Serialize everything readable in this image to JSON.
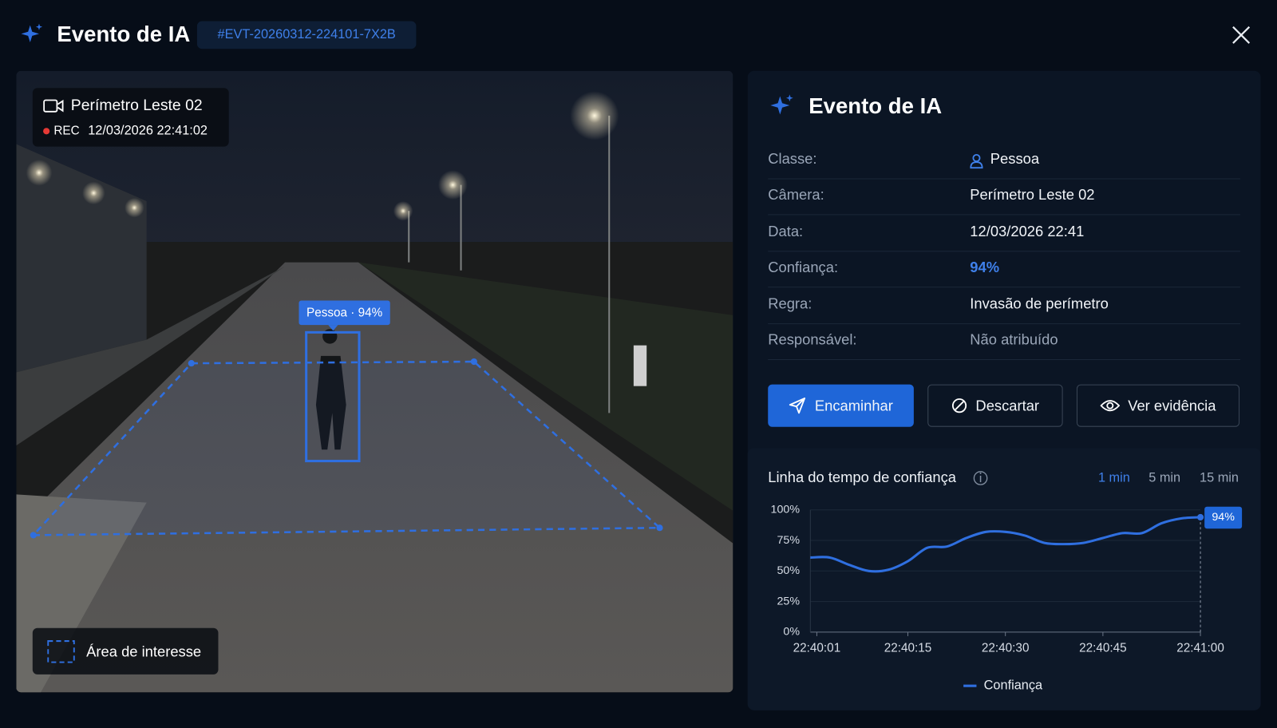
{
  "header": {
    "title": "Evento de IA",
    "event_id": "#EVT-20260312-224101-7X2B"
  },
  "camera": {
    "name": "Perímetro Leste 02",
    "rec": "REC",
    "timestamp": "12/03/2026 22:41:02",
    "detection_label": "Pessoa · 94%",
    "roi_legend": "Área de interesse"
  },
  "panel": {
    "title": "Evento de IA",
    "rows": [
      {
        "label": "Classe:",
        "value": "Pessoa"
      },
      {
        "label": "Câmera:",
        "value": "Perímetro Leste 02"
      },
      {
        "label": "Data:",
        "value": "12/03/2026 22:41"
      },
      {
        "label": "Confiança:",
        "value": "94%"
      },
      {
        "label": "Regra:",
        "value": "Invasão de perímetro"
      },
      {
        "label": "Responsável:",
        "value": "Não atribuído"
      }
    ],
    "buttons": [
      "Encaminhar",
      "Descartar",
      "Ver evidência"
    ]
  },
  "chart_data": {
    "type": "line",
    "title": "Linha do tempo de confiança",
    "ranges": [
      "1 min",
      "5 min",
      "15 min"
    ],
    "selected_range": 0,
    "x": [
      "22:40:00",
      "22:40:03",
      "22:40:06",
      "22:40:09",
      "22:40:12",
      "22:40:15",
      "22:40:18",
      "22:40:21",
      "22:40:24",
      "22:40:27",
      "22:40:30",
      "22:40:33",
      "22:40:36",
      "22:40:39",
      "22:40:42",
      "22:40:45",
      "22:40:48",
      "22:40:51",
      "22:40:54",
      "22:40:57",
      "22:41:00"
    ],
    "series": [
      {
        "name": "Confiança",
        "color": "#2f6fe0",
        "values": [
          61,
          61,
          55,
          50,
          51,
          58,
          69,
          70,
          77,
          82,
          82,
          79,
          73,
          72,
          73,
          77,
          81,
          81,
          89,
          93,
          94
        ],
        "value_labels": [
          null,
          null,
          null,
          null,
          null,
          null,
          null,
          null,
          null,
          null,
          null,
          null,
          null,
          null,
          null,
          null,
          null,
          null,
          null,
          null,
          "94%"
        ]
      }
    ],
    "xlim": [
      "22:40:00",
      "22:41:00"
    ],
    "xticks": [
      "22:40:01",
      "22:40:15",
      "22:40:30",
      "22:40:45",
      "22:41:00"
    ],
    "ylim": [
      0,
      100
    ],
    "yticks": [
      {
        "value": 0,
        "label": "0%"
      },
      {
        "value": 25,
        "label": "25%"
      },
      {
        "value": 50,
        "label": "50%"
      },
      {
        "value": 75,
        "label": "75%"
      },
      {
        "value": 100,
        "label": "100%"
      }
    ],
    "grid": true,
    "legend": "bottom"
  }
}
